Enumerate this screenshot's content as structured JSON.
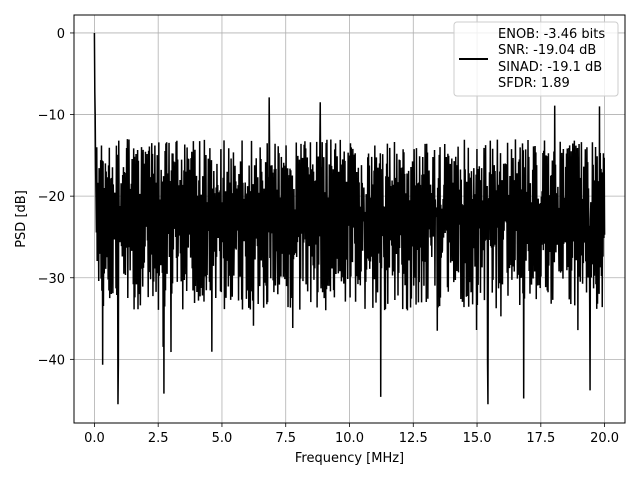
{
  "chart_data": {
    "type": "line",
    "title": "",
    "xlabel": "Frequency [MHz]",
    "ylabel": "PSD [dB]",
    "xlim": [
      -0.8,
      20.8
    ],
    "ylim": [
      -47.8,
      2.2
    ],
    "xticks": [
      0.0,
      2.5,
      5.0,
      7.5,
      10.0,
      12.5,
      15.0,
      17.5,
      20.0
    ],
    "xtick_labels": [
      "0.0",
      "2.5",
      "5.0",
      "7.5",
      "10.0",
      "12.5",
      "15.0",
      "17.5",
      "20.0"
    ],
    "yticks": [
      0,
      -10,
      -20,
      -30,
      -40
    ],
    "ytick_labels": [
      "0",
      "−10",
      "−20",
      "−30",
      "−40"
    ],
    "grid": true,
    "legend_position": "top-right",
    "series": [
      {
        "color": "#000000",
        "description": "Dense noise-floor spectrum, mostly between about -35 and -13 dB, with a peak at 0 dB near 0 MHz",
        "x_range": [
          0.0,
          20.0
        ],
        "peak": {
          "x": 0.0,
          "y": 0.0
        },
        "notable_dips": [
          {
            "x": 0.93,
            "y": -45.5
          },
          {
            "x": 2.72,
            "y": -44.2
          },
          {
            "x": 11.23,
            "y": -44.6
          },
          {
            "x": 15.43,
            "y": -45.5
          },
          {
            "x": 16.83,
            "y": -44.8
          },
          {
            "x": 19.43,
            "y": -43.8
          }
        ],
        "notable_peaks": [
          {
            "x": 6.85,
            "y": -7.9
          },
          {
            "x": 8.85,
            "y": -8.5
          },
          {
            "x": 18.05,
            "y": -8.9
          },
          {
            "x": 19.8,
            "y": -9.0
          }
        ]
      }
    ],
    "legend": {
      "lines": [
        "ENOB: -3.46 bits",
        "SNR: -19.04 dB",
        "SINAD: -19.1 dB",
        "SFDR: 1.89"
      ]
    }
  }
}
